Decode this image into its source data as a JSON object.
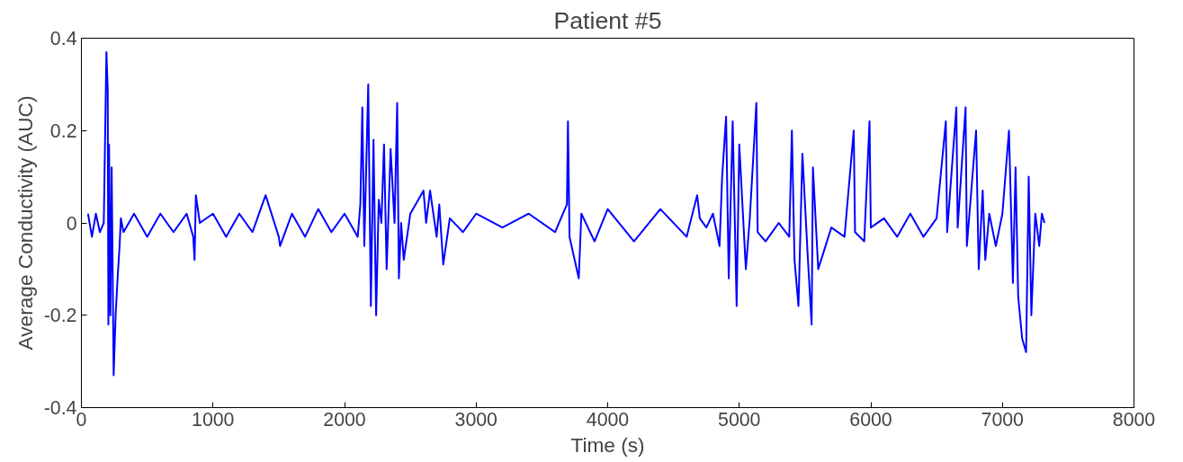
{
  "chart_data": {
    "type": "line",
    "title": "Patient #5",
    "xlabel": "Time (s)",
    "ylabel": "Average Conductivity (AUC)",
    "xlim": [
      0,
      8000
    ],
    "ylim": [
      -0.4,
      0.4
    ],
    "xticks": [
      0,
      1000,
      2000,
      3000,
      4000,
      5000,
      6000,
      7000,
      8000
    ],
    "yticks": [
      -0.4,
      -0.2,
      0,
      0.2,
      0.4
    ],
    "grid": false,
    "series": [
      {
        "color": "#0000ff",
        "x": [
          50,
          80,
          110,
          140,
          170,
          190,
          200,
          205,
          210,
          220,
          230,
          245,
          260,
          275,
          290,
          300,
          320,
          400,
          500,
          600,
          700,
          800,
          850,
          860,
          870,
          900,
          1000,
          1100,
          1200,
          1300,
          1400,
          1500,
          1510,
          1600,
          1700,
          1800,
          1900,
          2000,
          2100,
          2120,
          2135,
          2150,
          2180,
          2200,
          2220,
          2240,
          2260,
          2280,
          2300,
          2320,
          2350,
          2380,
          2400,
          2413,
          2430,
          2450,
          2500,
          2580,
          2600,
          2620,
          2650,
          2700,
          2720,
          2750,
          2800,
          2900,
          3000,
          3200,
          3400,
          3600,
          3690,
          3698,
          3710,
          3780,
          3800,
          3900,
          4000,
          4200,
          4400,
          4600,
          4680,
          4700,
          4750,
          4800,
          4850,
          4870,
          4900,
          4920,
          4950,
          4980,
          5000,
          5050,
          5080,
          5130,
          5140,
          5200,
          5300,
          5380,
          5400,
          5420,
          5450,
          5480,
          5520,
          5550,
          5560,
          5600,
          5700,
          5800,
          5870,
          5880,
          5950,
          5990,
          6000,
          6100,
          6200,
          6300,
          6400,
          6500,
          6570,
          6580,
          6650,
          6660,
          6720,
          6730,
          6800,
          6820,
          6850,
          6870,
          6900,
          6950,
          7000,
          7050,
          7080,
          7100,
          7120,
          7150,
          7180,
          7200,
          7220,
          7250,
          7280,
          7300,
          7320
        ],
        "values": [
          0.02,
          -0.03,
          0.02,
          -0.02,
          0.0,
          0.37,
          0.29,
          -0.22,
          0.17,
          -0.2,
          0.12,
          -0.33,
          -0.2,
          -0.12,
          -0.05,
          0.01,
          -0.02,
          0.02,
          -0.03,
          0.02,
          -0.02,
          0.02,
          -0.03,
          -0.08,
          0.06,
          0.0,
          0.02,
          -0.03,
          0.02,
          -0.02,
          0.06,
          -0.03,
          -0.05,
          0.02,
          -0.03,
          0.03,
          -0.02,
          0.02,
          -0.03,
          0.04,
          0.25,
          -0.05,
          0.3,
          -0.18,
          0.18,
          -0.2,
          0.05,
          0.0,
          0.17,
          -0.1,
          0.16,
          0.0,
          0.26,
          -0.12,
          0.0,
          -0.08,
          0.02,
          0.06,
          0.07,
          0.0,
          0.07,
          -0.03,
          0.04,
          -0.09,
          0.01,
          -0.02,
          0.02,
          -0.01,
          0.02,
          -0.02,
          0.04,
          0.22,
          -0.03,
          -0.12,
          0.02,
          -0.04,
          0.03,
          -0.04,
          0.03,
          -0.03,
          0.06,
          0.01,
          -0.01,
          0.02,
          -0.05,
          0.1,
          0.23,
          -0.12,
          0.22,
          -0.18,
          0.17,
          -0.1,
          0.01,
          0.26,
          -0.02,
          -0.04,
          0.0,
          -0.03,
          0.2,
          -0.08,
          -0.18,
          0.15,
          -0.07,
          -0.22,
          0.12,
          -0.1,
          -0.01,
          -0.03,
          0.2,
          -0.02,
          -0.04,
          0.22,
          -0.01,
          0.01,
          -0.03,
          0.02,
          -0.03,
          0.01,
          0.22,
          -0.02,
          0.25,
          -0.01,
          0.25,
          -0.05,
          0.2,
          -0.1,
          0.07,
          -0.08,
          0.02,
          -0.05,
          0.02,
          0.2,
          -0.13,
          0.12,
          -0.16,
          -0.25,
          -0.28,
          0.1,
          -0.2,
          0.02,
          -0.05,
          0.02,
          0.0
        ]
      }
    ]
  }
}
